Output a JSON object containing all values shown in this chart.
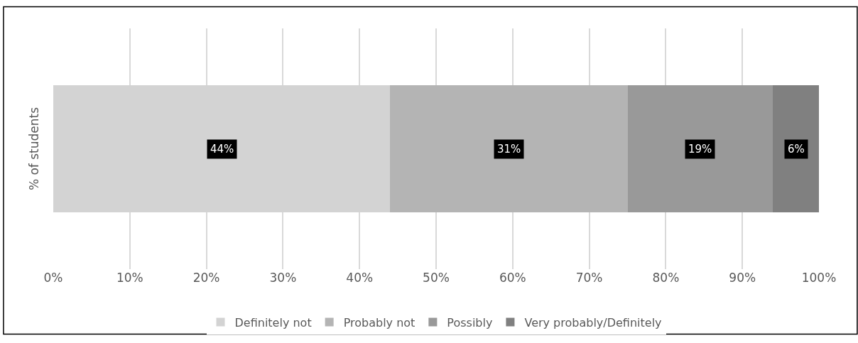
{
  "chart_data": {
    "type": "bar",
    "orientation": "horizontal",
    "stacked": true,
    "ylabel": "% of students",
    "categories": [
      null
    ],
    "series": [
      {
        "name": "Definitely not",
        "color": "#d3d3d3",
        "values": [
          44
        ],
        "value_labels": [
          "44%"
        ]
      },
      {
        "name": "Probably not",
        "color": "#b4b4b4",
        "values": [
          31
        ],
        "value_labels": [
          "31%"
        ]
      },
      {
        "name": "Possibly",
        "color": "#999999",
        "values": [
          19
        ],
        "value_labels": [
          "19%"
        ]
      },
      {
        "name": "Very probably/Definitely",
        "color": "#808080",
        "values": [
          6
        ],
        "value_labels": [
          "6%"
        ]
      }
    ],
    "xlim": [
      0,
      100
    ],
    "xticks": [
      {
        "value": 0,
        "label": "0%"
      },
      {
        "value": 10,
        "label": "10%"
      },
      {
        "value": 20,
        "label": "20%"
      },
      {
        "value": 30,
        "label": "30%"
      },
      {
        "value": 40,
        "label": "40%"
      },
      {
        "value": 50,
        "label": "50%"
      },
      {
        "value": 60,
        "label": "60%"
      },
      {
        "value": 70,
        "label": "70%"
      },
      {
        "value": 80,
        "label": "80%"
      },
      {
        "value": 90,
        "label": "90%"
      },
      {
        "value": 100,
        "label": "100%"
      }
    ],
    "grid": "x",
    "legend": "bottom"
  }
}
